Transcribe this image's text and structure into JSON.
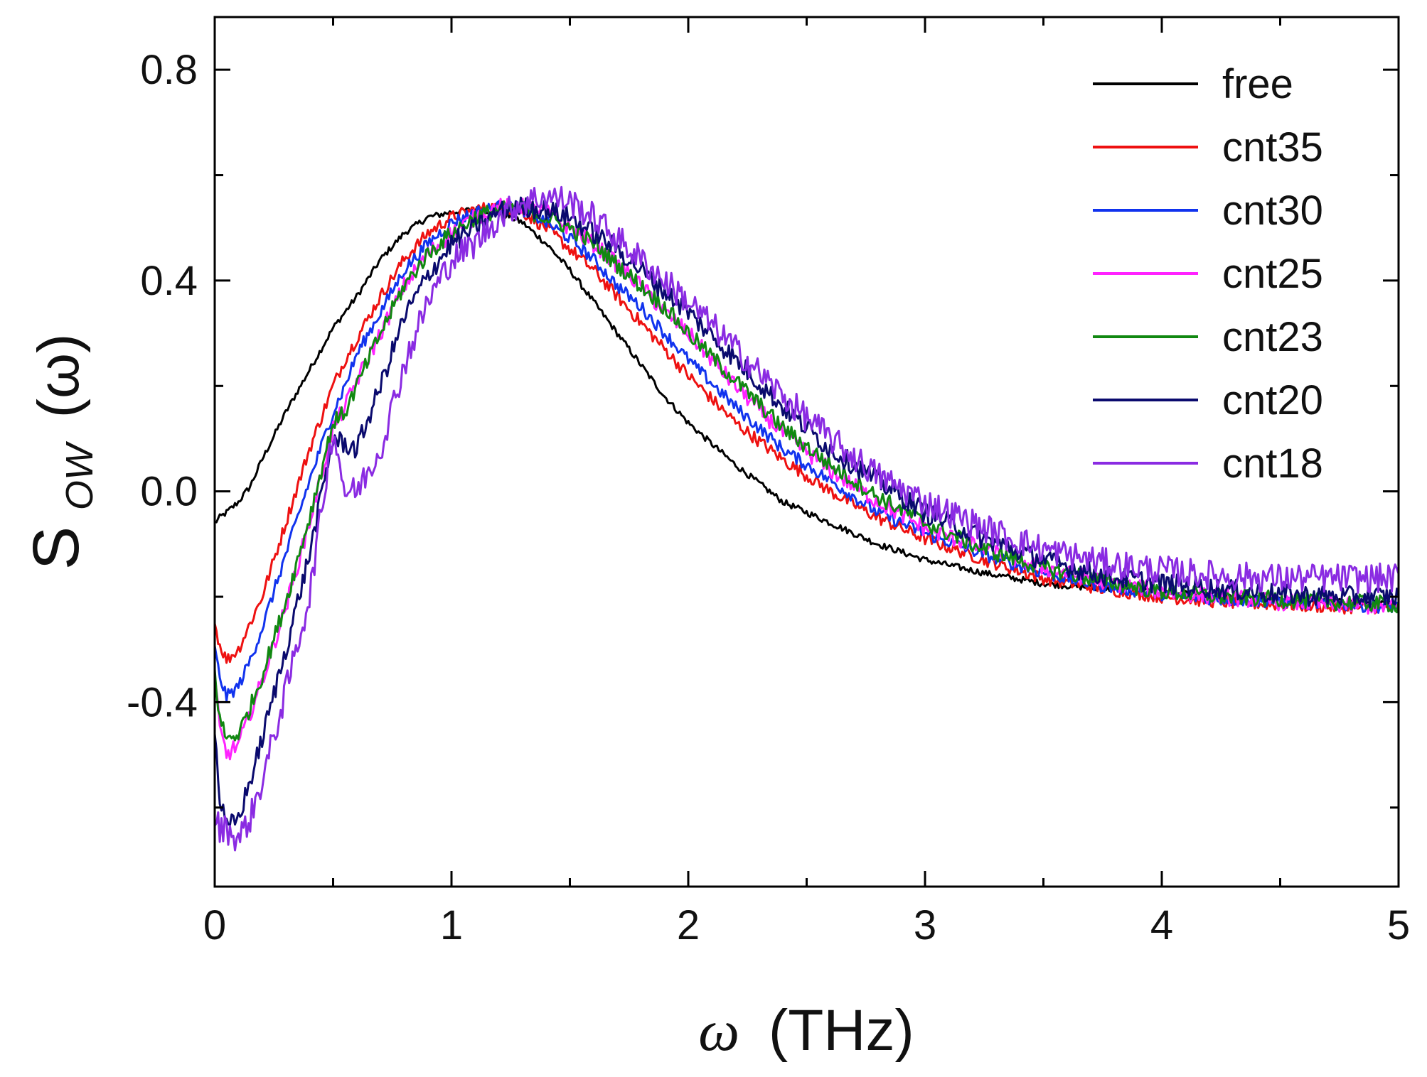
{
  "chart_data": {
    "type": "line",
    "title": "",
    "xlabel": "ω (THz)",
    "xlabel_symbol": "ω",
    "xlabel_unit": "(THz)",
    "ylabel": "S_OW (ω)",
    "ylabel_main": "S",
    "ylabel_sub": "OW",
    "ylabel_arg": "(ω)",
    "xlim": [
      0,
      5
    ],
    "ylim": [
      -0.75,
      0.9
    ],
    "xticks": [
      0,
      1,
      2,
      3,
      4,
      5
    ],
    "xtick_labels": [
      "0",
      "1",
      "2",
      "3",
      "4",
      "5"
    ],
    "yticks": [
      -0.4,
      0.0,
      0.4,
      0.8
    ],
    "ytick_labels": [
      "-0.4",
      "0.0",
      "0.4",
      "0.8"
    ],
    "grid": false,
    "legend_position": "top-right",
    "x": [
      0,
      0.02,
      0.05,
      0.1,
      0.15,
      0.2,
      0.3,
      0.4,
      0.5,
      0.55,
      0.6,
      0.7,
      0.8,
      0.9,
      1.0,
      1.1,
      1.2,
      1.3,
      1.4,
      1.5,
      1.6,
      1.7,
      1.8,
      1.9,
      2.0,
      2.2,
      2.4,
      2.6,
      2.8,
      3.0,
      3.25,
      3.5,
      3.75,
      4.0,
      4.25,
      4.5,
      4.75,
      5.0
    ],
    "series": [
      {
        "name": "free",
        "color": "#000000",
        "values": [
          -0.06,
          -0.05,
          -0.04,
          -0.02,
          0.01,
          0.06,
          0.15,
          0.23,
          0.31,
          0.34,
          0.37,
          0.44,
          0.49,
          0.52,
          0.53,
          0.535,
          0.53,
          0.51,
          0.47,
          0.42,
          0.36,
          0.3,
          0.24,
          0.18,
          0.13,
          0.05,
          -0.02,
          -0.06,
          -0.1,
          -0.13,
          -0.155,
          -0.175,
          -0.185,
          -0.19,
          -0.2,
          -0.205,
          -0.21,
          -0.215
        ]
      },
      {
        "name": "cnt35",
        "color": "#ee1111",
        "values": [
          -0.25,
          -0.29,
          -0.32,
          -0.3,
          -0.25,
          -0.2,
          -0.06,
          0.08,
          0.2,
          0.25,
          0.29,
          0.37,
          0.44,
          0.49,
          0.52,
          0.535,
          0.54,
          0.53,
          0.5,
          0.46,
          0.42,
          0.37,
          0.32,
          0.27,
          0.22,
          0.13,
          0.06,
          0.0,
          -0.05,
          -0.09,
          -0.13,
          -0.165,
          -0.185,
          -0.2,
          -0.21,
          -0.215,
          -0.22,
          -0.22
        ]
      },
      {
        "name": "cnt30",
        "color": "#1133ee",
        "values": [
          -0.3,
          -0.35,
          -0.39,
          -0.37,
          -0.32,
          -0.26,
          -0.12,
          0.02,
          0.15,
          0.2,
          0.26,
          0.34,
          0.42,
          0.47,
          0.51,
          0.53,
          0.54,
          0.535,
          0.51,
          0.48,
          0.44,
          0.39,
          0.35,
          0.3,
          0.25,
          0.16,
          0.08,
          0.02,
          -0.04,
          -0.08,
          -0.12,
          -0.155,
          -0.18,
          -0.195,
          -0.205,
          -0.21,
          -0.215,
          -0.22
        ]
      },
      {
        "name": "cnt25",
        "color": "#ff22ff",
        "values": [
          -0.35,
          -0.45,
          -0.5,
          -0.48,
          -0.42,
          -0.36,
          -0.22,
          -0.06,
          0.12,
          0.16,
          0.21,
          0.3,
          0.39,
          0.45,
          0.49,
          0.52,
          0.54,
          0.54,
          0.53,
          0.5,
          0.47,
          0.43,
          0.39,
          0.34,
          0.3,
          0.2,
          0.11,
          0.04,
          -0.02,
          -0.07,
          -0.11,
          -0.145,
          -0.17,
          -0.19,
          -0.2,
          -0.21,
          -0.215,
          -0.22
        ]
      },
      {
        "name": "cnt23",
        "color": "#118811",
        "values": [
          -0.34,
          -0.43,
          -0.47,
          -0.46,
          -0.41,
          -0.35,
          -0.21,
          -0.05,
          0.13,
          0.15,
          0.2,
          0.3,
          0.39,
          0.45,
          0.49,
          0.52,
          0.535,
          0.535,
          0.52,
          0.5,
          0.47,
          0.43,
          0.39,
          0.35,
          0.3,
          0.21,
          0.12,
          0.05,
          -0.01,
          -0.06,
          -0.11,
          -0.145,
          -0.17,
          -0.19,
          -0.2,
          -0.205,
          -0.21,
          -0.215
        ]
      },
      {
        "name": "cnt20",
        "color": "#0a0a6e",
        "values": [
          -0.45,
          -0.58,
          -0.64,
          -0.62,
          -0.55,
          -0.47,
          -0.3,
          -0.12,
          0.1,
          0.09,
          0.08,
          0.2,
          0.33,
          0.41,
          0.47,
          0.5,
          0.53,
          0.54,
          0.535,
          0.52,
          0.49,
          0.46,
          0.42,
          0.38,
          0.34,
          0.25,
          0.16,
          0.08,
          0.02,
          -0.04,
          -0.09,
          -0.13,
          -0.16,
          -0.175,
          -0.185,
          -0.195,
          -0.2,
          -0.2
        ]
      },
      {
        "name": "cnt18",
        "color": "#8a2be2",
        "values": [
          -0.62,
          -0.64,
          -0.64,
          -0.66,
          -0.62,
          -0.55,
          -0.38,
          -0.2,
          0.12,
          0.0,
          0.0,
          0.08,
          0.24,
          0.36,
          0.44,
          0.47,
          0.52,
          0.55,
          0.56,
          0.55,
          0.52,
          0.48,
          0.44,
          0.4,
          0.36,
          0.27,
          0.18,
          0.1,
          0.03,
          -0.02,
          -0.07,
          -0.11,
          -0.135,
          -0.15,
          -0.16,
          -0.165,
          -0.165,
          -0.165
        ]
      }
    ]
  }
}
